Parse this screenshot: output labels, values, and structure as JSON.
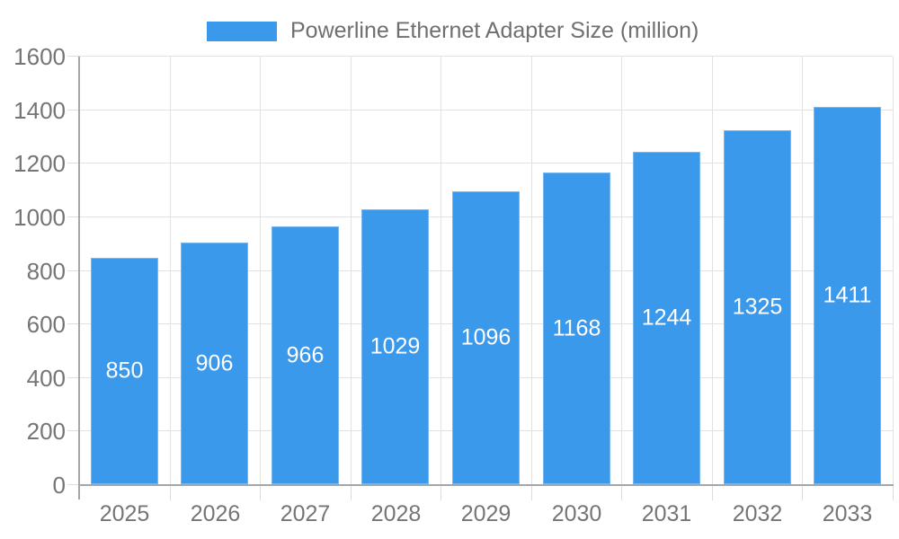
{
  "chart_data": {
    "type": "bar",
    "title": "Powerline Ethernet Adapter Size (million)",
    "xlabel": "",
    "ylabel": "",
    "categories": [
      "2025",
      "2026",
      "2027",
      "2028",
      "2029",
      "2030",
      "2031",
      "2032",
      "2033"
    ],
    "series": [
      {
        "name": "Powerline Ethernet Adapter Size (million)",
        "values": [
          850,
          906,
          966,
          1029,
          1096,
          1168,
          1244,
          1325,
          1411
        ]
      }
    ],
    "bar_value_labels": [
      "850",
      "906",
      "966",
      "1029",
      "1096",
      "1168",
      "1244",
      "1325",
      "1411"
    ],
    "ylim": [
      0,
      1600
    ],
    "yticks": [
      0,
      200,
      400,
      600,
      800,
      1000,
      1200,
      1400,
      1600
    ],
    "grid": true,
    "legend_position": "top",
    "colors": {
      "bar_fill": "#3b99ec",
      "bar_border": "#7ab8f3",
      "grid": "#e2e2e2",
      "axis": "#a6a6a6",
      "tick": "#dcdcdc",
      "axis_text": "#757575",
      "legend_text": "#6f6f6f",
      "bar_label_text": "#ffffff"
    }
  }
}
